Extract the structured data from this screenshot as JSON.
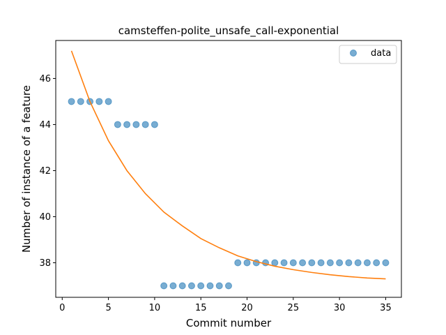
{
  "chart_data": {
    "type": "scatter",
    "title": "camsteffen-polite_unsafe_call-exponential",
    "xlabel": "Commit number",
    "ylabel": "Number of instance of a feature",
    "xlim": [
      -0.7,
      36.7
    ],
    "ylim": [
      36.5,
      47.65
    ],
    "x_ticks": [
      0,
      5,
      10,
      15,
      20,
      25,
      30,
      35
    ],
    "y_ticks": [
      38,
      40,
      42,
      44,
      46
    ],
    "legend": {
      "placement": "top-right",
      "entries": [
        "data"
      ]
    },
    "grid": false,
    "series": [
      {
        "name": "data",
        "kind": "scatter",
        "color": "#1f77b4",
        "x": [
          1,
          2,
          3,
          4,
          5,
          6,
          7,
          8,
          9,
          10,
          11,
          12,
          13,
          14,
          15,
          16,
          17,
          18,
          19,
          20,
          21,
          22,
          23,
          24,
          25,
          26,
          27,
          28,
          29,
          30,
          31,
          32,
          33,
          34,
          35
        ],
        "y": [
          45,
          45,
          45,
          45,
          45,
          44,
          44,
          44,
          44,
          44,
          37,
          37,
          37,
          37,
          37,
          37,
          37,
          37,
          38,
          38,
          38,
          38,
          38,
          38,
          38,
          38,
          38,
          38,
          38,
          38,
          38,
          38,
          38,
          38,
          38
        ]
      },
      {
        "kind": "line",
        "color": "#ff7f0e",
        "x": [
          1,
          3,
          5,
          7,
          9,
          11,
          13,
          15,
          17,
          19,
          21,
          23,
          25,
          27,
          29,
          31,
          33,
          35
        ],
        "y": [
          47.2,
          45.0,
          43.3,
          42.0,
          41.0,
          40.2,
          39.6,
          39.05,
          38.65,
          38.3,
          38.05,
          37.85,
          37.7,
          37.58,
          37.48,
          37.4,
          37.34,
          37.3
        ]
      }
    ]
  }
}
